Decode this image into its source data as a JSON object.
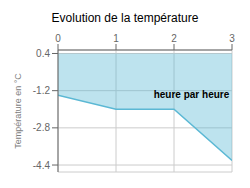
{
  "chart_data": {
    "type": "area",
    "title": "Evolution de la température",
    "ylabel": "Température en °C",
    "x": [
      0,
      1,
      2,
      3
    ],
    "values": [
      -1.4,
      -2.0,
      -2.0,
      -4.2
    ],
    "fill_top": 0.4,
    "color": "#5bb8d4",
    "xlim": [
      0,
      3
    ],
    "xticks": [
      0,
      1,
      2,
      3
    ],
    "ylim": [
      -4.7,
      0.55
    ],
    "yticks": [
      0.4,
      -1.2,
      -2.8,
      -4.4
    ],
    "grid": true,
    "annotations": [
      {
        "text": "heure par heure",
        "x": 1.65,
        "y": -1.2
      }
    ]
  }
}
